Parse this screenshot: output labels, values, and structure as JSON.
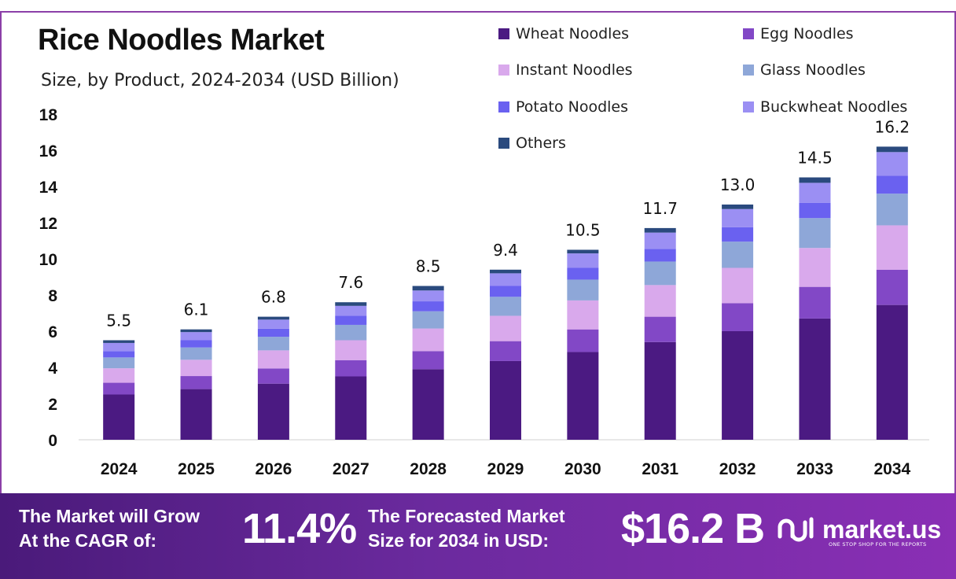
{
  "title": "Rice Noodles Market",
  "subtitle": "Size, by Product, 2024-2034 (USD Billion)",
  "chart_data": {
    "type": "bar",
    "stacked": true,
    "title": "Rice Noodles Market",
    "subtitle": "Size, by Product, 2024-2034 (USD Billion)",
    "xlabel": "",
    "ylabel": "",
    "ylim": [
      0,
      18
    ],
    "yticks": [
      0,
      2,
      4,
      6,
      8,
      10,
      12,
      14,
      16,
      18
    ],
    "categories": [
      "2024",
      "2025",
      "2026",
      "2027",
      "2028",
      "2029",
      "2030",
      "2031",
      "2032",
      "2033",
      "2034"
    ],
    "totals": [
      5.5,
      6.1,
      6.8,
      7.6,
      8.5,
      9.4,
      10.5,
      11.7,
      13.0,
      14.5,
      16.2
    ],
    "total_labels": [
      "5.5",
      "6.1",
      "6.8",
      "7.6",
      "8.5",
      "9.4",
      "10.5",
      "11.7",
      "13.0",
      "14.5",
      "16.2"
    ],
    "series": [
      {
        "name": "Wheat Noodles",
        "color": "#4b1a82",
        "values": [
          2.5,
          2.8,
          3.1,
          3.5,
          3.9,
          4.35,
          4.85,
          5.4,
          6.0,
          6.7,
          7.45
        ]
      },
      {
        "name": "Egg Noodles",
        "color": "#8248c6",
        "values": [
          0.65,
          0.72,
          0.84,
          0.9,
          1.0,
          1.1,
          1.25,
          1.4,
          1.55,
          1.75,
          1.95
        ]
      },
      {
        "name": "Instant Noodles",
        "color": "#d9a9ec",
        "values": [
          0.8,
          0.9,
          1.0,
          1.1,
          1.25,
          1.4,
          1.6,
          1.75,
          1.95,
          2.15,
          2.45
        ]
      },
      {
        "name": "Glass Noodles",
        "color": "#8ea7d8",
        "values": [
          0.6,
          0.68,
          0.75,
          0.85,
          0.95,
          1.05,
          1.15,
          1.3,
          1.45,
          1.65,
          1.75
        ]
      },
      {
        "name": "Potato Noodles",
        "color": "#6a61f0",
        "values": [
          0.35,
          0.4,
          0.45,
          0.5,
          0.55,
          0.6,
          0.65,
          0.7,
          0.8,
          0.85,
          1.0
        ]
      },
      {
        "name": "Buckwheat Noodles",
        "color": "#9b8ff3",
        "values": [
          0.45,
          0.45,
          0.5,
          0.55,
          0.6,
          0.7,
          0.8,
          0.9,
          1.0,
          1.1,
          1.3
        ]
      },
      {
        "name": "Others",
        "color": "#2a4a7e",
        "values": [
          0.15,
          0.15,
          0.16,
          0.2,
          0.25,
          0.2,
          0.2,
          0.25,
          0.25,
          0.3,
          0.3
        ]
      }
    ],
    "legend_position": "top-right",
    "grid": false
  },
  "banner": {
    "cagr_text_line1": "The Market will Grow",
    "cagr_text_line2": "At the CAGR of:",
    "cagr_value": "11.4%",
    "forecast_text_line1": "The Forecasted Market",
    "forecast_text_line2": "Size for 2034 in USD:",
    "forecast_value": "$16.2 B",
    "brand_name": "market.us",
    "brand_tagline": "ONE STOP SHOP FOR THE REPORTS"
  },
  "colors": {
    "frame": "#8b3fa8",
    "banner_start": "#4a1a7a",
    "banner_end": "#8a2fb5"
  }
}
